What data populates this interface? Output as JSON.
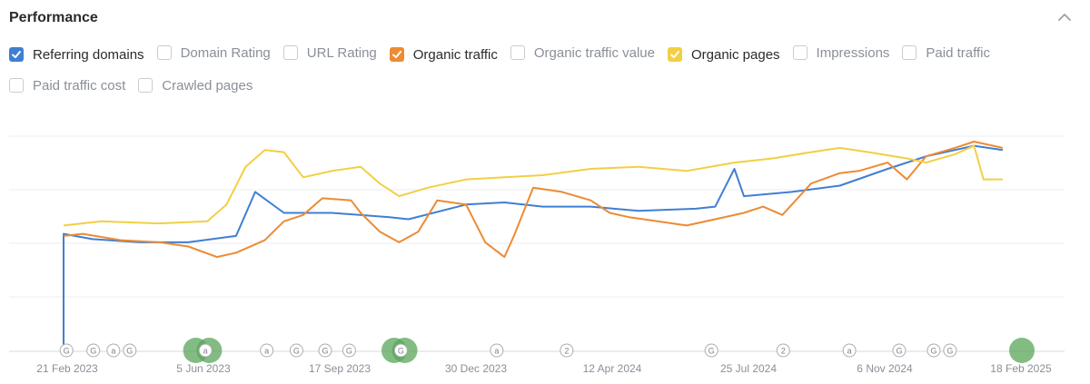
{
  "panel": {
    "title": "Performance",
    "collapse_icon": "chevron-up-icon"
  },
  "legend": [
    {
      "label": "Referring domains",
      "checked": true,
      "color": "#3f7fd3"
    },
    {
      "label": "Domain Rating",
      "checked": false
    },
    {
      "label": "URL Rating",
      "checked": false
    },
    {
      "label": "Organic traffic",
      "checked": true,
      "color": "#ec8b34"
    },
    {
      "label": "Organic traffic value",
      "checked": false
    },
    {
      "label": "Organic pages",
      "checked": true,
      "color": "#f2cf44"
    },
    {
      "label": "Impressions",
      "checked": false
    },
    {
      "label": "Paid traffic",
      "checked": false
    },
    {
      "label": "Paid traffic cost",
      "checked": false
    },
    {
      "label": "Crawled pages",
      "checked": false
    }
  ],
  "chart_data": {
    "type": "line",
    "x_ticks": [
      "21 Feb 2023",
      "5 Jun 2023",
      "17 Sep 2023",
      "30 Dec 2023",
      "12 Apr 2024",
      "25 Jul 2024",
      "6 Nov 2024",
      "18 Feb 2025"
    ],
    "grid": true,
    "series": [
      {
        "name": "Referring domains",
        "color": "#3f7fd3",
        "points": [
          [
            0,
            0
          ],
          [
            0,
            0.56
          ],
          [
            0.03,
            0.535
          ],
          [
            0.08,
            0.52
          ],
          [
            0.13,
            0.52
          ],
          [
            0.18,
            0.55
          ],
          [
            0.2,
            0.76
          ],
          [
            0.23,
            0.66
          ],
          [
            0.28,
            0.66
          ],
          [
            0.34,
            0.64
          ],
          [
            0.36,
            0.63
          ],
          [
            0.42,
            0.7
          ],
          [
            0.46,
            0.71
          ],
          [
            0.5,
            0.69
          ],
          [
            0.55,
            0.69
          ],
          [
            0.6,
            0.67
          ],
          [
            0.66,
            0.68
          ],
          [
            0.68,
            0.69
          ],
          [
            0.7,
            0.87
          ],
          [
            0.71,
            0.74
          ],
          [
            0.76,
            0.76
          ],
          [
            0.81,
            0.79
          ],
          [
            0.86,
            0.87
          ],
          [
            0.9,
            0.93
          ],
          [
            0.95,
            0.98
          ],
          [
            0.98,
            0.96
          ]
        ]
      },
      {
        "name": "Organic traffic",
        "color": "#ec8b34",
        "points": [
          [
            0,
            0.55
          ],
          [
            0.02,
            0.56
          ],
          [
            0.06,
            0.53
          ],
          [
            0.1,
            0.52
          ],
          [
            0.13,
            0.5
          ],
          [
            0.16,
            0.45
          ],
          [
            0.18,
            0.47
          ],
          [
            0.21,
            0.53
          ],
          [
            0.23,
            0.62
          ],
          [
            0.25,
            0.65
          ],
          [
            0.27,
            0.73
          ],
          [
            0.3,
            0.72
          ],
          [
            0.31,
            0.66
          ],
          [
            0.33,
            0.57
          ],
          [
            0.35,
            0.52
          ],
          [
            0.37,
            0.57
          ],
          [
            0.39,
            0.72
          ],
          [
            0.42,
            0.7
          ],
          [
            0.44,
            0.52
          ],
          [
            0.46,
            0.45
          ],
          [
            0.47,
            0.55
          ],
          [
            0.49,
            0.78
          ],
          [
            0.52,
            0.76
          ],
          [
            0.55,
            0.72
          ],
          [
            0.57,
            0.66
          ],
          [
            0.59,
            0.64
          ],
          [
            0.62,
            0.62
          ],
          [
            0.65,
            0.6
          ],
          [
            0.68,
            0.63
          ],
          [
            0.71,
            0.66
          ],
          [
            0.73,
            0.69
          ],
          [
            0.75,
            0.65
          ],
          [
            0.78,
            0.8
          ],
          [
            0.81,
            0.85
          ],
          [
            0.83,
            0.86
          ],
          [
            0.86,
            0.9
          ],
          [
            0.88,
            0.82
          ],
          [
            0.9,
            0.93
          ],
          [
            0.93,
            0.97
          ],
          [
            0.95,
            1.0
          ],
          [
            0.98,
            0.97
          ]
        ]
      },
      {
        "name": "Organic pages",
        "color": "#f2cf44",
        "points": [
          [
            0,
            0.6
          ],
          [
            0.04,
            0.62
          ],
          [
            0.1,
            0.61
          ],
          [
            0.15,
            0.62
          ],
          [
            0.17,
            0.7
          ],
          [
            0.19,
            0.88
          ],
          [
            0.21,
            0.96
          ],
          [
            0.23,
            0.95
          ],
          [
            0.25,
            0.83
          ],
          [
            0.28,
            0.86
          ],
          [
            0.31,
            0.88
          ],
          [
            0.33,
            0.8
          ],
          [
            0.35,
            0.74
          ],
          [
            0.38,
            0.78
          ],
          [
            0.42,
            0.82
          ],
          [
            0.46,
            0.83
          ],
          [
            0.5,
            0.84
          ],
          [
            0.55,
            0.87
          ],
          [
            0.6,
            0.88
          ],
          [
            0.65,
            0.86
          ],
          [
            0.7,
            0.9
          ],
          [
            0.74,
            0.92
          ],
          [
            0.78,
            0.95
          ],
          [
            0.81,
            0.97
          ],
          [
            0.84,
            0.95
          ],
          [
            0.88,
            0.92
          ],
          [
            0.9,
            0.9
          ],
          [
            0.93,
            0.94
          ],
          [
            0.95,
            0.98
          ],
          [
            0.96,
            0.82
          ],
          [
            0.98,
            0.82
          ]
        ]
      }
    ],
    "event_markers": [
      {
        "label": "G",
        "t": 0.003
      },
      {
        "label": "G",
        "t": 0.031
      },
      {
        "label": "a",
        "t": 0.052
      },
      {
        "label": "G",
        "t": 0.069
      },
      {
        "label": "",
        "t": 0.138,
        "big": true
      },
      {
        "label": "a",
        "t": 0.148
      },
      {
        "label": "",
        "t": 0.152,
        "big": true
      },
      {
        "label": "a",
        "t": 0.212
      },
      {
        "label": "G",
        "t": 0.243
      },
      {
        "label": "G",
        "t": 0.273
      },
      {
        "label": "G",
        "t": 0.298
      },
      {
        "label": "",
        "t": 0.345,
        "big": true
      },
      {
        "label": "G",
        "t": 0.352
      },
      {
        "label": "",
        "t": 0.356,
        "big": true
      },
      {
        "label": "a",
        "t": 0.452
      },
      {
        "label": "2",
        "t": 0.525
      },
      {
        "label": "G",
        "t": 0.676
      },
      {
        "label": "2",
        "t": 0.751
      },
      {
        "label": "a",
        "t": 0.82
      },
      {
        "label": "G",
        "t": 0.872
      },
      {
        "label": "G",
        "t": 0.908
      },
      {
        "label": "G",
        "t": 0.925
      },
      {
        "label": "",
        "t": 1.0,
        "big": true
      }
    ]
  }
}
